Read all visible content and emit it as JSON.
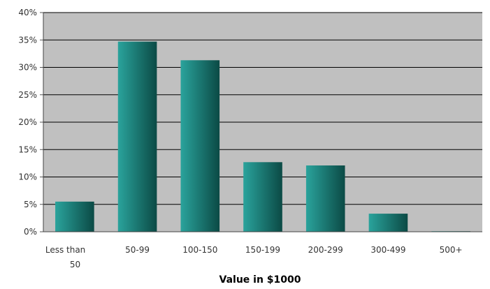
{
  "chart_data": {
    "type": "bar",
    "title": "",
    "xlabel": "Value in $1000",
    "ylabel": "",
    "categories": [
      "Less than\n50",
      "50-99",
      "100-150",
      "150-199",
      "200-299",
      "300-499",
      "500+"
    ],
    "values": [
      5.5,
      34.7,
      31.3,
      12.7,
      12.1,
      3.3,
      0.1
    ],
    "ylim": [
      0,
      40
    ],
    "yticks": [
      0,
      5,
      10,
      15,
      20,
      25,
      30,
      35,
      40
    ],
    "ytick_format": "%",
    "grid": true,
    "legend": "none",
    "colors": {
      "bar_light": "#2aa39c",
      "bar_dark": "#0b4a45",
      "plot_background": "#c0c0c0",
      "gridline": "#000000"
    }
  }
}
